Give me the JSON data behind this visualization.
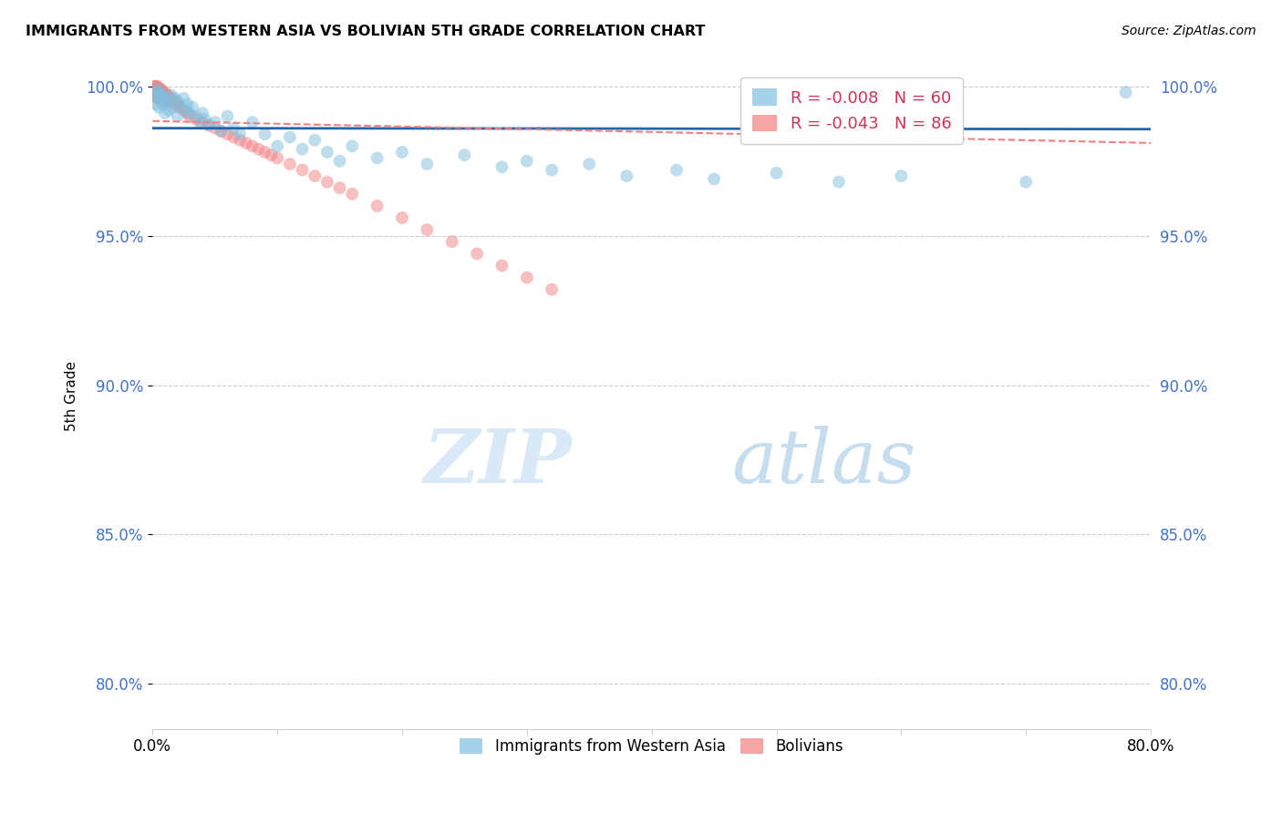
{
  "title": "IMMIGRANTS FROM WESTERN ASIA VS BOLIVIAN 5TH GRADE CORRELATION CHART",
  "source": "Source: ZipAtlas.com",
  "ylabel": "5th Grade",
  "xlim": [
    0.0,
    0.8
  ],
  "ylim": [
    0.965,
    1.005
  ],
  "yticks": [
    0.8,
    0.85,
    0.9,
    0.95,
    1.0
  ],
  "ytick_labels": [
    "80.0%",
    "85.0%",
    "90.0%",
    "95.0%",
    "100.0%"
  ],
  "xticks": [
    0.0,
    0.1,
    0.2,
    0.3,
    0.4,
    0.5,
    0.6,
    0.7,
    0.8
  ],
  "blue_color": "#7fbfdf",
  "pink_color": "#f08080",
  "blue_line_color": "#2166ac",
  "pink_line_color": "#f08080",
  "blue_R": -0.008,
  "blue_N": 60,
  "pink_R": -0.043,
  "pink_N": 86,
  "blue_scatter_x": [
    0.001,
    0.002,
    0.003,
    0.004,
    0.005,
    0.005,
    0.006,
    0.007,
    0.008,
    0.009,
    0.01,
    0.01,
    0.012,
    0.013,
    0.015,
    0.016,
    0.018,
    0.02,
    0.02,
    0.022,
    0.025,
    0.027,
    0.028,
    0.03,
    0.032,
    0.035,
    0.038,
    0.04,
    0.042,
    0.045,
    0.05,
    0.055,
    0.06,
    0.065,
    0.07,
    0.08,
    0.09,
    0.1,
    0.11,
    0.12,
    0.13,
    0.14,
    0.15,
    0.16,
    0.18,
    0.2,
    0.22,
    0.25,
    0.28,
    0.3,
    0.32,
    0.35,
    0.38,
    0.42,
    0.45,
    0.5,
    0.55,
    0.6,
    0.7,
    0.78
  ],
  "blue_scatter_y": [
    0.998,
    0.996,
    0.994,
    0.999,
    0.997,
    0.993,
    0.998,
    0.995,
    0.997,
    0.994,
    0.996,
    0.991,
    0.995,
    0.992,
    0.997,
    0.993,
    0.996,
    0.995,
    0.99,
    0.993,
    0.996,
    0.992,
    0.994,
    0.991,
    0.993,
    0.99,
    0.988,
    0.991,
    0.989,
    0.987,
    0.988,
    0.985,
    0.99,
    0.986,
    0.984,
    0.988,
    0.984,
    0.98,
    0.983,
    0.979,
    0.982,
    0.978,
    0.975,
    0.98,
    0.976,
    0.978,
    0.974,
    0.977,
    0.973,
    0.975,
    0.972,
    0.974,
    0.97,
    0.972,
    0.969,
    0.971,
    0.968,
    0.97,
    0.968,
    0.998
  ],
  "pink_scatter_x": [
    0.001,
    0.001,
    0.001,
    0.001,
    0.002,
    0.002,
    0.002,
    0.002,
    0.002,
    0.002,
    0.002,
    0.003,
    0.003,
    0.003,
    0.003,
    0.003,
    0.004,
    0.004,
    0.004,
    0.004,
    0.004,
    0.004,
    0.005,
    0.005,
    0.005,
    0.005,
    0.005,
    0.006,
    0.006,
    0.006,
    0.006,
    0.007,
    0.007,
    0.007,
    0.007,
    0.008,
    0.008,
    0.008,
    0.009,
    0.009,
    0.01,
    0.01,
    0.01,
    0.011,
    0.011,
    0.012,
    0.012,
    0.013,
    0.014,
    0.015,
    0.016,
    0.017,
    0.018,
    0.02,
    0.022,
    0.025,
    0.028,
    0.03,
    0.035,
    0.04,
    0.045,
    0.05,
    0.055,
    0.06,
    0.065,
    0.07,
    0.075,
    0.08,
    0.085,
    0.09,
    0.095,
    0.1,
    0.11,
    0.12,
    0.13,
    0.14,
    0.15,
    0.16,
    0.18,
    0.2,
    0.22,
    0.24,
    0.26,
    0.28,
    0.3,
    0.32
  ],
  "pink_scatter_y": [
    1.0,
    0.999,
    0.999,
    0.998,
    1.0,
    0.999,
    0.999,
    0.999,
    0.998,
    0.998,
    0.997,
    1.0,
    0.999,
    0.999,
    0.998,
    0.997,
    1.0,
    0.999,
    0.999,
    0.998,
    0.997,
    0.996,
    0.999,
    0.999,
    0.998,
    0.997,
    0.996,
    0.999,
    0.998,
    0.997,
    0.996,
    0.999,
    0.998,
    0.997,
    0.996,
    0.998,
    0.997,
    0.996,
    0.997,
    0.996,
    0.998,
    0.997,
    0.995,
    0.997,
    0.996,
    0.997,
    0.995,
    0.996,
    0.995,
    0.996,
    0.995,
    0.994,
    0.995,
    0.994,
    0.993,
    0.992,
    0.991,
    0.99,
    0.989,
    0.988,
    0.987,
    0.986,
    0.985,
    0.984,
    0.983,
    0.982,
    0.981,
    0.98,
    0.979,
    0.978,
    0.977,
    0.976,
    0.974,
    0.972,
    0.97,
    0.968,
    0.966,
    0.964,
    0.96,
    0.956,
    0.952,
    0.948,
    0.944,
    0.94,
    0.936,
    0.932
  ],
  "watermark_zip_color": "#d0e4f5",
  "watermark_atlas_color": "#b8d4ec",
  "grid_color": "#cccccc",
  "tick_label_color": "#4472c4"
}
